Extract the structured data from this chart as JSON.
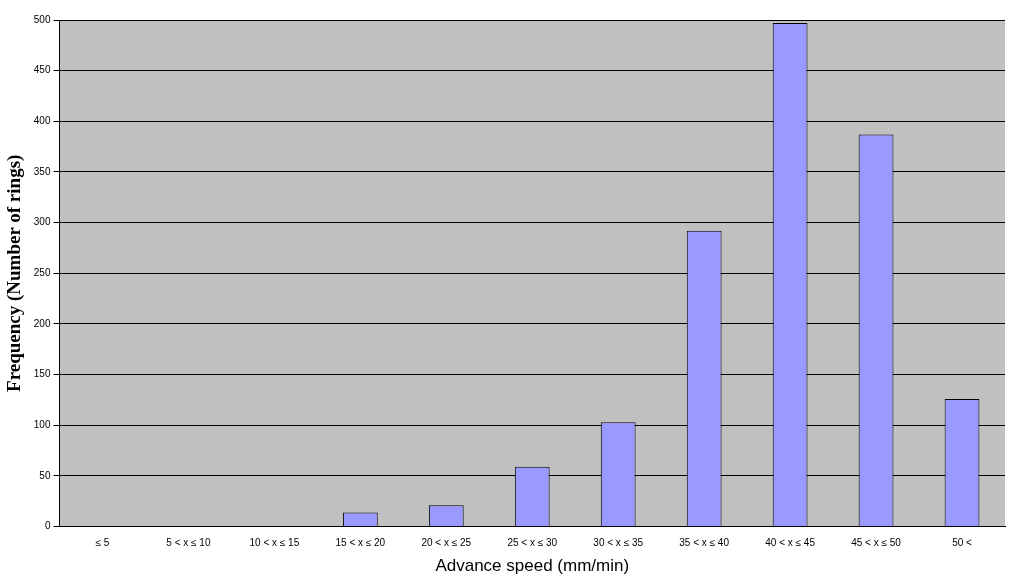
{
  "chart_data": {
    "type": "bar",
    "xlabel": "Advance speed (mm/min)",
    "ylabel": "Frequency (Number of rings)",
    "categories": [
      "≤ 5",
      "5 < x ≤ 10",
      "10 < x ≤ 15",
      "15 < x ≤ 20",
      "20 < x ≤ 25",
      "25 < x ≤ 30",
      "30 < x ≤ 35",
      "35 < x ≤ 40",
      "40 < x ≤ 45",
      "45 < x ≤ 50",
      "50 <"
    ],
    "values": [
      0,
      0,
      0,
      14,
      21,
      59,
      103,
      292,
      497,
      387,
      126
    ],
    "color": "#9999ff",
    "ylim": [
      0,
      500
    ],
    "yticks": [
      0,
      50,
      100,
      150,
      200,
      250,
      300,
      350,
      400,
      450,
      500
    ],
    "grid": "y"
  }
}
